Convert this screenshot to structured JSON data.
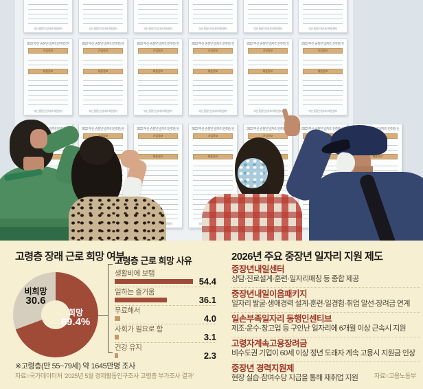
{
  "photo": {
    "description": "Four people seen from behind reading job-posting sheets pinned on a wall",
    "posting_sheet": {
      "header": "2022 부산 중장년 일자리 한마당 현장채용공고",
      "section1_label": "기업정보",
      "section2_label": "채용정보",
      "footer": "부산 중장년 일자리 희망센터"
    },
    "people": [
      "man-in-green-shirt",
      "woman-with-leopard-print-top",
      "woman-with-plaid-shirt",
      "man-in-navy-cap-pointing"
    ]
  },
  "infographic": {
    "background": "#f7efd2",
    "left_panel": {
      "title": "고령층 장래 근로 희망 여부",
      "note": "※고령층(만 55~79세) 약 1645만명 조사",
      "source": "자료=국가데이터처 '2025년 5월 경제활동인구조사 고령층 부가조사 결과'"
    },
    "right_panel": {
      "title": "2026년 주요 중장년 일자리 지원 제도",
      "items": [
        {
          "name": "중장년내일센터",
          "desc": "상담·진로설계·훈련·일자리매칭 등 종합 제공"
        },
        {
          "name": "중장년내일이음패키지",
          "desc": "일자리 발굴·생애경력 설계·훈련·일경험·취업 알선·장려금 연계"
        },
        {
          "name": "일손부족일자리 동행인센티브",
          "desc": "제조·운수·창고업 등 구인난 일자리에 6개월 이상 근속시 지원"
        },
        {
          "name": "고령자계속고용장려금",
          "desc": "비수도권 기업이 60세 이상 정년 도래자 계속 고용시 지원금 인상"
        },
        {
          "name": "중장년 경력지원제",
          "desc": "현장 실습·참여수당 지급을 통해 재취업 지원"
        }
      ],
      "source": "자료=고용노동부"
    }
  },
  "chart_data": [
    {
      "type": "pie",
      "donut": true,
      "title": "고령층 장래 근로 희망 여부",
      "labels": [
        "희망",
        "비희망"
      ],
      "values": [
        69.4,
        30.6
      ],
      "value_labels": [
        "69.4%",
        "30.6"
      ],
      "colors": [
        "#a04b38",
        "#d5cdbd"
      ],
      "start_angle_deg": 0,
      "direction": "clockwise"
    },
    {
      "type": "bar",
      "orientation": "horizontal",
      "title": "고령층 근로 희망 사유",
      "categories": [
        "생활비에 보탬",
        "일하는 즐거움",
        "무료해서",
        "사회가 필요로 함",
        "건강 유지"
      ],
      "values": [
        54.4,
        36.1,
        4.0,
        3.1,
        2.3
      ],
      "bar_colors": [
        "#a04b38",
        "#a04b38",
        "#c59a6a",
        "#c59a6a",
        "#c59a6a"
      ],
      "xlim": [
        0,
        60
      ],
      "legend": false,
      "grid": false
    }
  ]
}
